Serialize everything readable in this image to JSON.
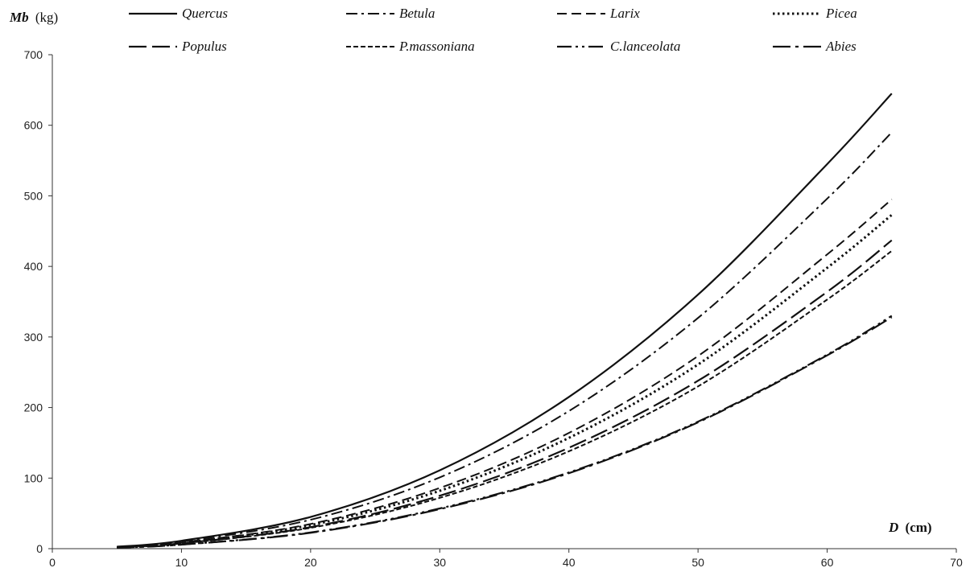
{
  "chart_data": {
    "type": "line",
    "title": "",
    "ylabel": {
      "symbol": "Mb",
      "unit": "(kg)"
    },
    "xlabel": {
      "symbol": "D",
      "unit": "(cm)"
    },
    "xlim": [
      0,
      70
    ],
    "ylim": [
      0,
      700
    ],
    "x_ticks": [
      "0",
      "10",
      "20",
      "30",
      "40",
      "50",
      "60",
      "70"
    ],
    "y_ticks": [
      "0",
      "100",
      "200",
      "300",
      "400",
      "500",
      "600",
      "700"
    ],
    "grid": false,
    "legend_position": "top",
    "x": [
      5,
      10,
      20,
      30,
      40,
      50,
      60,
      65
    ],
    "series": [
      {
        "name": "Quercus",
        "line_style": "solid",
        "values": [
          2.8,
          11.2,
          45,
          111,
          215,
          360,
          545,
          645
        ]
      },
      {
        "name": "Betula",
        "line_style": "dash-dot",
        "values": [
          2.5,
          10.1,
          41,
          101,
          195,
          327,
          496,
          590
        ]
      },
      {
        "name": "Larix",
        "line_style": "dashed",
        "values": [
          2.2,
          8.8,
          35,
          86,
          164,
          273,
          417,
          495
        ]
      },
      {
        "name": "Picea",
        "line_style": "dotted",
        "values": [
          2.1,
          8.4,
          33.5,
          82,
          157,
          261,
          398,
          473
        ]
      },
      {
        "name": "Populus",
        "line_style": "long-dash",
        "values": [
          1.9,
          7.6,
          30.5,
          75,
          143,
          238,
          364,
          437
        ]
      },
      {
        "name": "P.massoniana",
        "line_style": "short-dash",
        "values": [
          1.85,
          7.4,
          29.5,
          72,
          138,
          230,
          353,
          422
        ]
      },
      {
        "name": "C.lanceolata",
        "line_style": "long-dash-dot-dot",
        "values": [
          1.5,
          5.8,
          23,
          57,
          108,
          180,
          275,
          330
        ]
      },
      {
        "name": "Abies",
        "line_style": "long-dash-dot",
        "values": [
          1.45,
          5.7,
          22.5,
          56,
          107,
          179,
          274,
          328
        ]
      }
    ]
  }
}
